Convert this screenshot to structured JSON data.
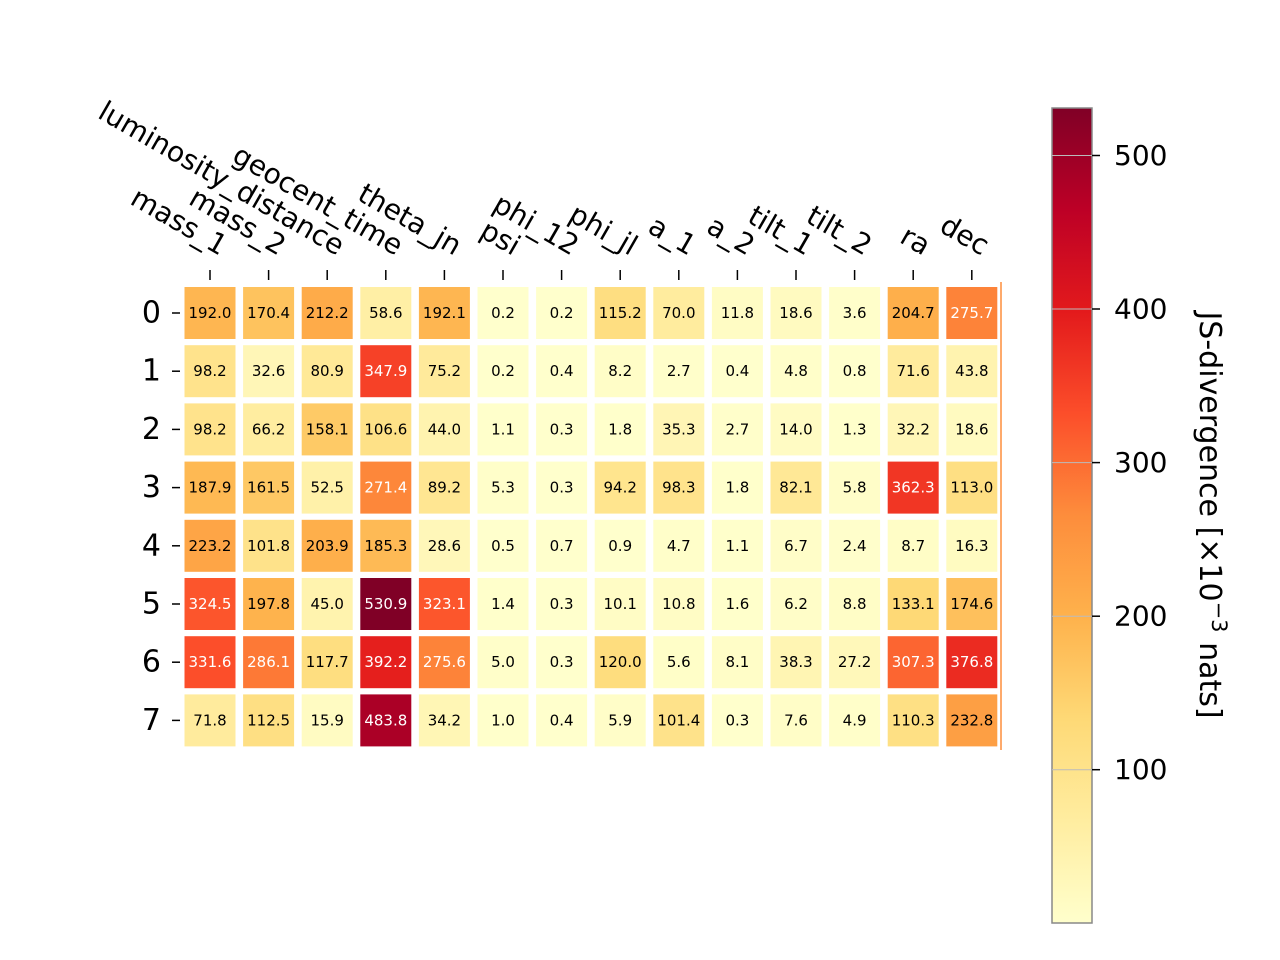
{
  "chart_data": {
    "type": "heatmap",
    "columns": [
      "mass_1",
      "mass_2",
      "luminosity_distance",
      "geocent_time",
      "theta_jn",
      "psi",
      "phi_12",
      "phi_jl",
      "a_1",
      "a_2",
      "tilt_1",
      "tilt_2",
      "ra",
      "dec"
    ],
    "rows": [
      "0",
      "1",
      "2",
      "3",
      "4",
      "5",
      "6",
      "7"
    ],
    "values": [
      [
        192.0,
        170.4,
        212.2,
        58.6,
        192.1,
        0.2,
        0.2,
        115.2,
        70.0,
        11.8,
        18.6,
        3.6,
        204.7,
        275.7
      ],
      [
        98.2,
        32.6,
        80.9,
        347.9,
        75.2,
        0.2,
        0.4,
        8.2,
        2.7,
        0.4,
        4.8,
        0.8,
        71.6,
        43.8
      ],
      [
        98.2,
        66.2,
        158.1,
        106.6,
        44.0,
        1.1,
        0.3,
        1.8,
        35.3,
        2.7,
        14.0,
        1.3,
        32.2,
        18.6
      ],
      [
        187.9,
        161.5,
        52.5,
        271.4,
        89.2,
        5.3,
        0.3,
        94.2,
        98.3,
        1.8,
        82.1,
        5.8,
        362.3,
        113.0
      ],
      [
        223.2,
        101.8,
        203.9,
        185.3,
        28.6,
        0.5,
        0.7,
        0.9,
        4.7,
        1.1,
        6.7,
        2.4,
        8.7,
        16.3
      ],
      [
        324.5,
        197.8,
        45.0,
        530.9,
        323.1,
        1.4,
        0.3,
        10.1,
        10.8,
        1.6,
        6.2,
        8.8,
        133.1,
        174.6
      ],
      [
        331.6,
        286.1,
        117.7,
        392.2,
        275.6,
        5.0,
        0.3,
        120.0,
        5.6,
        8.1,
        38.3,
        27.2,
        307.3,
        376.8
      ],
      [
        71.8,
        112.5,
        15.9,
        483.8,
        34.2,
        1.0,
        0.4,
        5.9,
        101.4,
        0.3,
        7.6,
        4.9,
        110.3,
        232.8
      ]
    ],
    "cell_labels": [
      [
        "192.0",
        "170.4",
        "212.2",
        "58.6",
        "192.1",
        "0.2",
        "0.2",
        "115.2",
        "70.0",
        "11.8",
        "18.6",
        "3.6",
        "204.7",
        "275.7"
      ],
      [
        "98.2",
        "32.6",
        "80.9",
        "347.9",
        "75.2",
        "0.2",
        "0.4",
        "8.2",
        "2.7",
        "0.4",
        "4.8",
        "0.8",
        "71.6",
        "43.8"
      ],
      [
        "98.2",
        "66.2",
        "158.1",
        "106.6",
        "44.0",
        "1.1",
        "0.3",
        "1.8",
        "35.3",
        "2.7",
        "14.0",
        "1.3",
        "32.2",
        "18.6"
      ],
      [
        "187.9",
        "161.5",
        "52.5",
        "271.4",
        "89.2",
        "5.3",
        "0.3",
        "94.2",
        "98.3",
        "1.8",
        "82.1",
        "5.8",
        "362.3",
        "113.0"
      ],
      [
        "223.2",
        "101.8",
        "203.9",
        "185.3",
        "28.6",
        "0.5",
        "0.7",
        "0.9",
        "4.7",
        "1.1",
        "6.7",
        "2.4",
        "8.7",
        "16.3"
      ],
      [
        "324.5",
        "197.8",
        "45.0",
        "530.9",
        "323.1",
        "1.4",
        "0.3",
        "10.1",
        "10.8",
        "1.6",
        "6.2",
        "8.8",
        "133.1",
        "174.6"
      ],
      [
        "331.6",
        "286.1",
        "117.7",
        "392.2",
        "275.6",
        "5.0",
        "0.3",
        "120.0",
        "5.6",
        "8.1",
        "38.3",
        "27.2",
        "307.3",
        "376.8"
      ],
      [
        "71.8",
        "112.5",
        "15.9",
        "483.8",
        "34.2",
        "1.0",
        "0.4",
        "5.9",
        "101.4",
        "0.3",
        "7.6",
        "4.9",
        "110.3",
        "232.8"
      ]
    ],
    "colorbar": {
      "label": "JS-divergence [×10⁻³ nats]",
      "label_prefix": "JS-divergence [×10",
      "label_exponent": "−3",
      "label_suffix": " nats]",
      "ticks": [
        100,
        200,
        300,
        400,
        500
      ],
      "tick_labels": [
        "100",
        "200",
        "300",
        "400",
        "500"
      ],
      "range": [
        0.2,
        530.9
      ],
      "colormap": "YlOrRd",
      "colormap_stops": [
        "#ffffcc",
        "#ffeda0",
        "#fed976",
        "#feb24c",
        "#fd8d3c",
        "#fc4e2a",
        "#e31a1c",
        "#bd0026",
        "#800026"
      ]
    },
    "annotation_colors": {
      "dark_text": "#000000",
      "light_text": "#ffffff"
    },
    "grid": false,
    "legend": "none"
  }
}
